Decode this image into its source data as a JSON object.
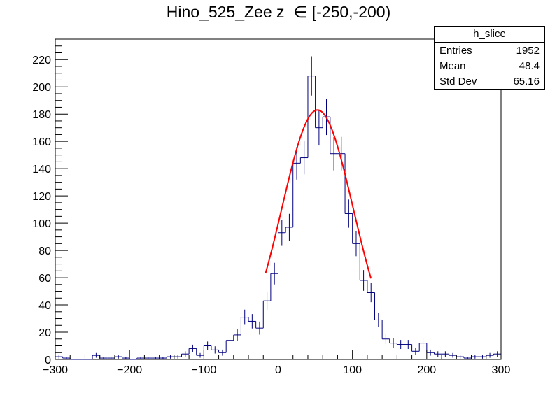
{
  "title": "Hino_525_Zee z  ∈ [-250,-200)",
  "stats": {
    "name": "h_slice",
    "rows": [
      {
        "label": "Entries",
        "value": "1952"
      },
      {
        "label": "Mean",
        "value": "48.4"
      },
      {
        "label": "Std Dev",
        "value": "65.16"
      }
    ]
  },
  "colors": {
    "histogram": "#00007f",
    "fit": "#ff0000",
    "axis": "#000000"
  },
  "chart_data": {
    "type": "histogram",
    "xlim": [
      -300,
      300
    ],
    "ylim": [
      0,
      235
    ],
    "bin_width": 10,
    "x_ticks": [
      -300,
      -200,
      -100,
      0,
      100,
      200,
      300
    ],
    "y_ticks": [
      0,
      20,
      40,
      60,
      80,
      100,
      120,
      140,
      160,
      180,
      200,
      220
    ],
    "series": [
      {
        "bin_low_edges": [
          -300,
          -290,
          -280,
          -270,
          -260,
          -250,
          -240,
          -230,
          -220,
          -210,
          -200,
          -190,
          -180,
          -170,
          -160,
          -150,
          -140,
          -130,
          -120,
          -110,
          -100,
          -90,
          -80,
          -70,
          -60,
          -50,
          -40,
          -30,
          -20,
          -10,
          0,
          10,
          20,
          30,
          40,
          50,
          60,
          70,
          80,
          90,
          100,
          110,
          120,
          130,
          140,
          150,
          160,
          170,
          180,
          190,
          200,
          210,
          220,
          230,
          240,
          250,
          260,
          270,
          280,
          290
        ],
        "counts": [
          2,
          1,
          0,
          0,
          0,
          3,
          1,
          1,
          2,
          1,
          0,
          1,
          1,
          1,
          1,
          2,
          2,
          4,
          8,
          3,
          10,
          7,
          5,
          14,
          18,
          31,
          28,
          23,
          43,
          63,
          93,
          97,
          144,
          148,
          208,
          170,
          178,
          151,
          151,
          107,
          85,
          58,
          49,
          29,
          15,
          12,
          11,
          11,
          6,
          12,
          5,
          4,
          4,
          3,
          2,
          1,
          2,
          2,
          3,
          4
        ]
      }
    ],
    "fit": {
      "function": "gaussian",
      "amplitude": 183,
      "mean": 53,
      "sigma": 48,
      "range": [
        -17,
        125
      ]
    }
  }
}
